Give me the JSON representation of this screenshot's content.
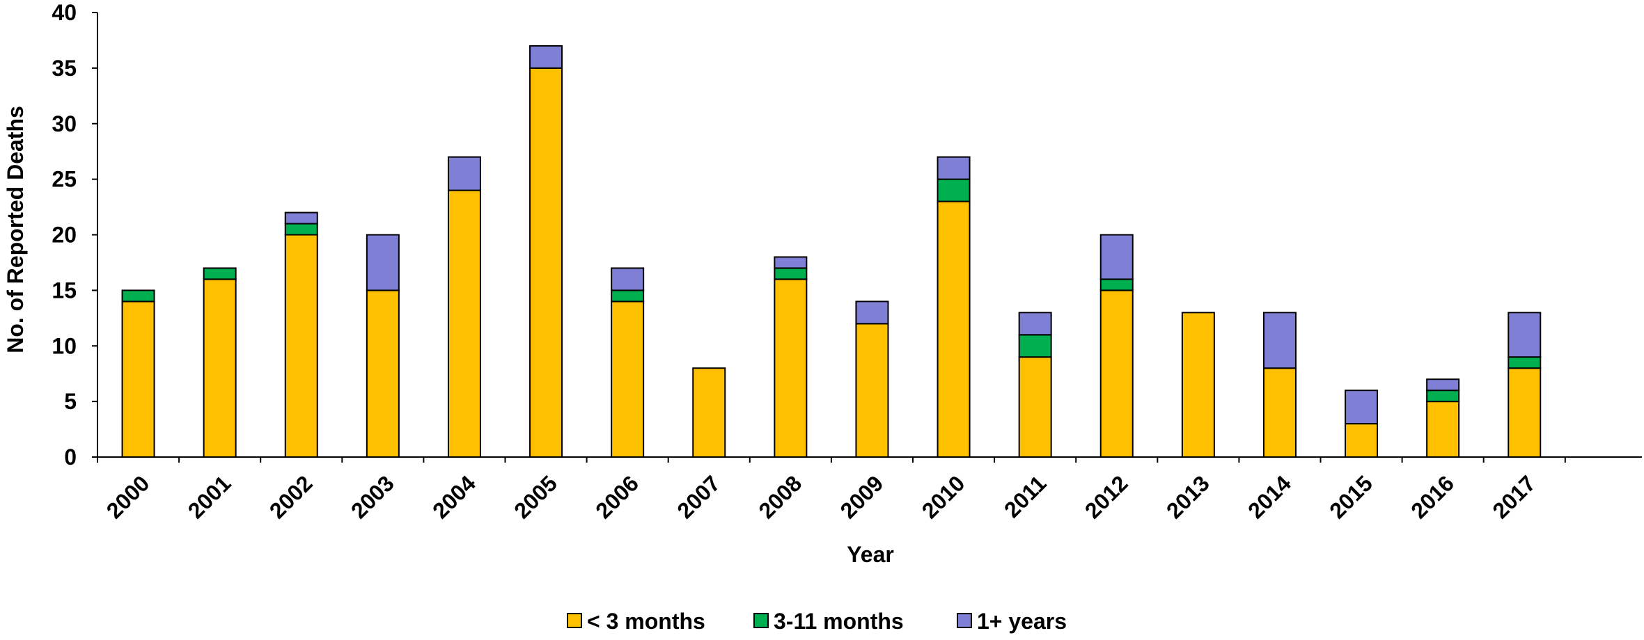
{
  "chart_data": {
    "type": "bar",
    "stacked": true,
    "categories": [
      "2000",
      "2001",
      "2002",
      "2003",
      "2004",
      "2005",
      "2006",
      "2007",
      "2008",
      "2009",
      "2010",
      "2011",
      "2012",
      "2013",
      "2014",
      "2015",
      "2016",
      "2017"
    ],
    "series": [
      {
        "name": "< 3 months",
        "color": "#FFC000",
        "values": [
          14,
          16,
          20,
          15,
          24,
          35,
          14,
          8,
          16,
          12,
          23,
          9,
          15,
          13,
          8,
          3,
          5,
          8
        ]
      },
      {
        "name": "3-11 months",
        "color": "#00B050",
        "values": [
          1,
          1,
          1,
          0,
          0,
          0,
          1,
          0,
          1,
          0,
          2,
          2,
          1,
          0,
          0,
          0,
          1,
          1
        ]
      },
      {
        "name": "1+ years",
        "color": "#7F7FD5",
        "values": [
          0,
          0,
          1,
          5,
          3,
          2,
          2,
          0,
          1,
          2,
          2,
          2,
          4,
          0,
          5,
          3,
          1,
          4
        ]
      }
    ],
    "xlabel": "Year",
    "ylabel": "No. of Reported Deaths",
    "ylim": [
      0,
      40
    ],
    "yticks": [
      0,
      5,
      10,
      15,
      20,
      25,
      30,
      35,
      40
    ],
    "grid": false,
    "legend_position": "bottom"
  }
}
